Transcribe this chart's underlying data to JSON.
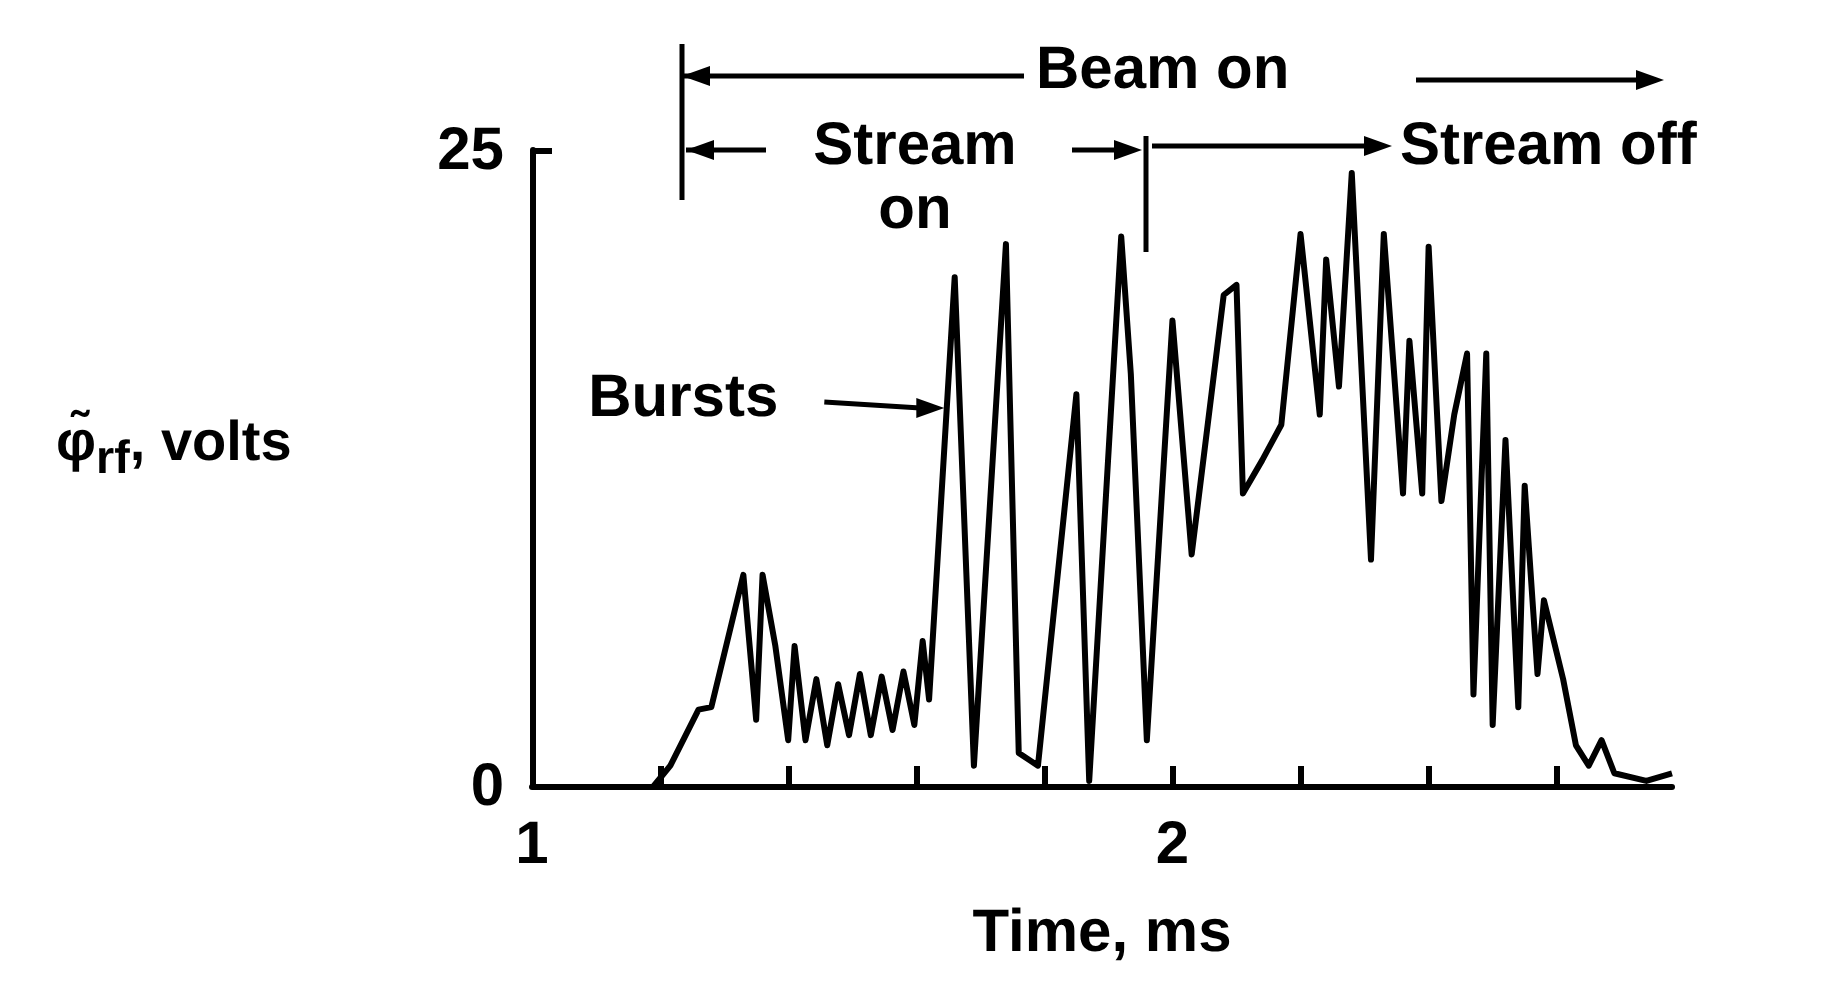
{
  "chart_data": {
    "type": "line",
    "xlabel": "Time, ms",
    "ylabel": "φ̃$_{rf}$, volts",
    "x": [
      1.19,
      1.216,
      1.26,
      1.28,
      1.33,
      1.35,
      1.36,
      1.38,
      1.4,
      1.41,
      1.427,
      1.444,
      1.461,
      1.478,
      1.495,
      1.512,
      1.529,
      1.546,
      1.563,
      1.58,
      1.597,
      1.61,
      1.62,
      1.66,
      1.69,
      1.74,
      1.76,
      1.79,
      1.85,
      1.87,
      1.92,
      1.935,
      1.96,
      2,
      2.03,
      2.08,
      2.1,
      2.11,
      2.14,
      2.17,
      2.2,
      2.23,
      2.24,
      2.26,
      2.28,
      2.31,
      2.33,
      2.36,
      2.37,
      2.39,
      2.4,
      2.42,
      2.44,
      2.46,
      2.47,
      2.49,
      2.5,
      2.52,
      2.54,
      2.55,
      2.57,
      2.58,
      2.61,
      2.63,
      2.65,
      2.67,
      2.69,
      2.74,
      2.78
    ],
    "series": [
      {
        "color": "#000000",
        "values": [
          0,
          0.8,
          3,
          3.1,
          8.3,
          2.6,
          8.3,
          5.5,
          1.8,
          5.5,
          1.8,
          4.2,
          1.6,
          4,
          2,
          4.4,
          2,
          4.3,
          2.2,
          4.5,
          2.4,
          5.7,
          3.4,
          20,
          0.8,
          21.3,
          1.3,
          0.8,
          15.4,
          0.2,
          21.6,
          16.2,
          1.8,
          18.3,
          9.1,
          19.3,
          19.7,
          11.5,
          12.8,
          14.2,
          21.7,
          14.6,
          20.7,
          15.7,
          24.1,
          8.9,
          21.7,
          11.5,
          17.5,
          11.5,
          21.2,
          11.2,
          14.6,
          17,
          3.6,
          17,
          2.4,
          13.6,
          3.1,
          11.8,
          4.4,
          7.3,
          4.2,
          1.6,
          0.8,
          1.8,
          0.5,
          0.2,
          0.5
        ]
      }
    ],
    "xlim": [
      1,
      2.78
    ],
    "xticks": [
      1,
      {
        "value": 1.2,
        "label": null
      },
      {
        "value": 1.4,
        "label": null
      },
      {
        "value": 1.6,
        "label": null
      },
      {
        "value": 1.8,
        "label": null
      },
      2,
      {
        "value": 2.2,
        "label": null
      },
      {
        "value": 2.4,
        "label": null
      },
      {
        "value": 2.6,
        "label": null
      }
    ],
    "ylim": [
      0,
      25
    ],
    "yticks": [
      0,
      25
    ],
    "grid": false,
    "marker": "none",
    "line_style": "solid",
    "annotations": [
      "Beam on",
      "Stream on",
      "Stream off",
      {
        "text": "Bursts",
        "x": 1.65,
        "y": 12.5
      }
    ]
  }
}
